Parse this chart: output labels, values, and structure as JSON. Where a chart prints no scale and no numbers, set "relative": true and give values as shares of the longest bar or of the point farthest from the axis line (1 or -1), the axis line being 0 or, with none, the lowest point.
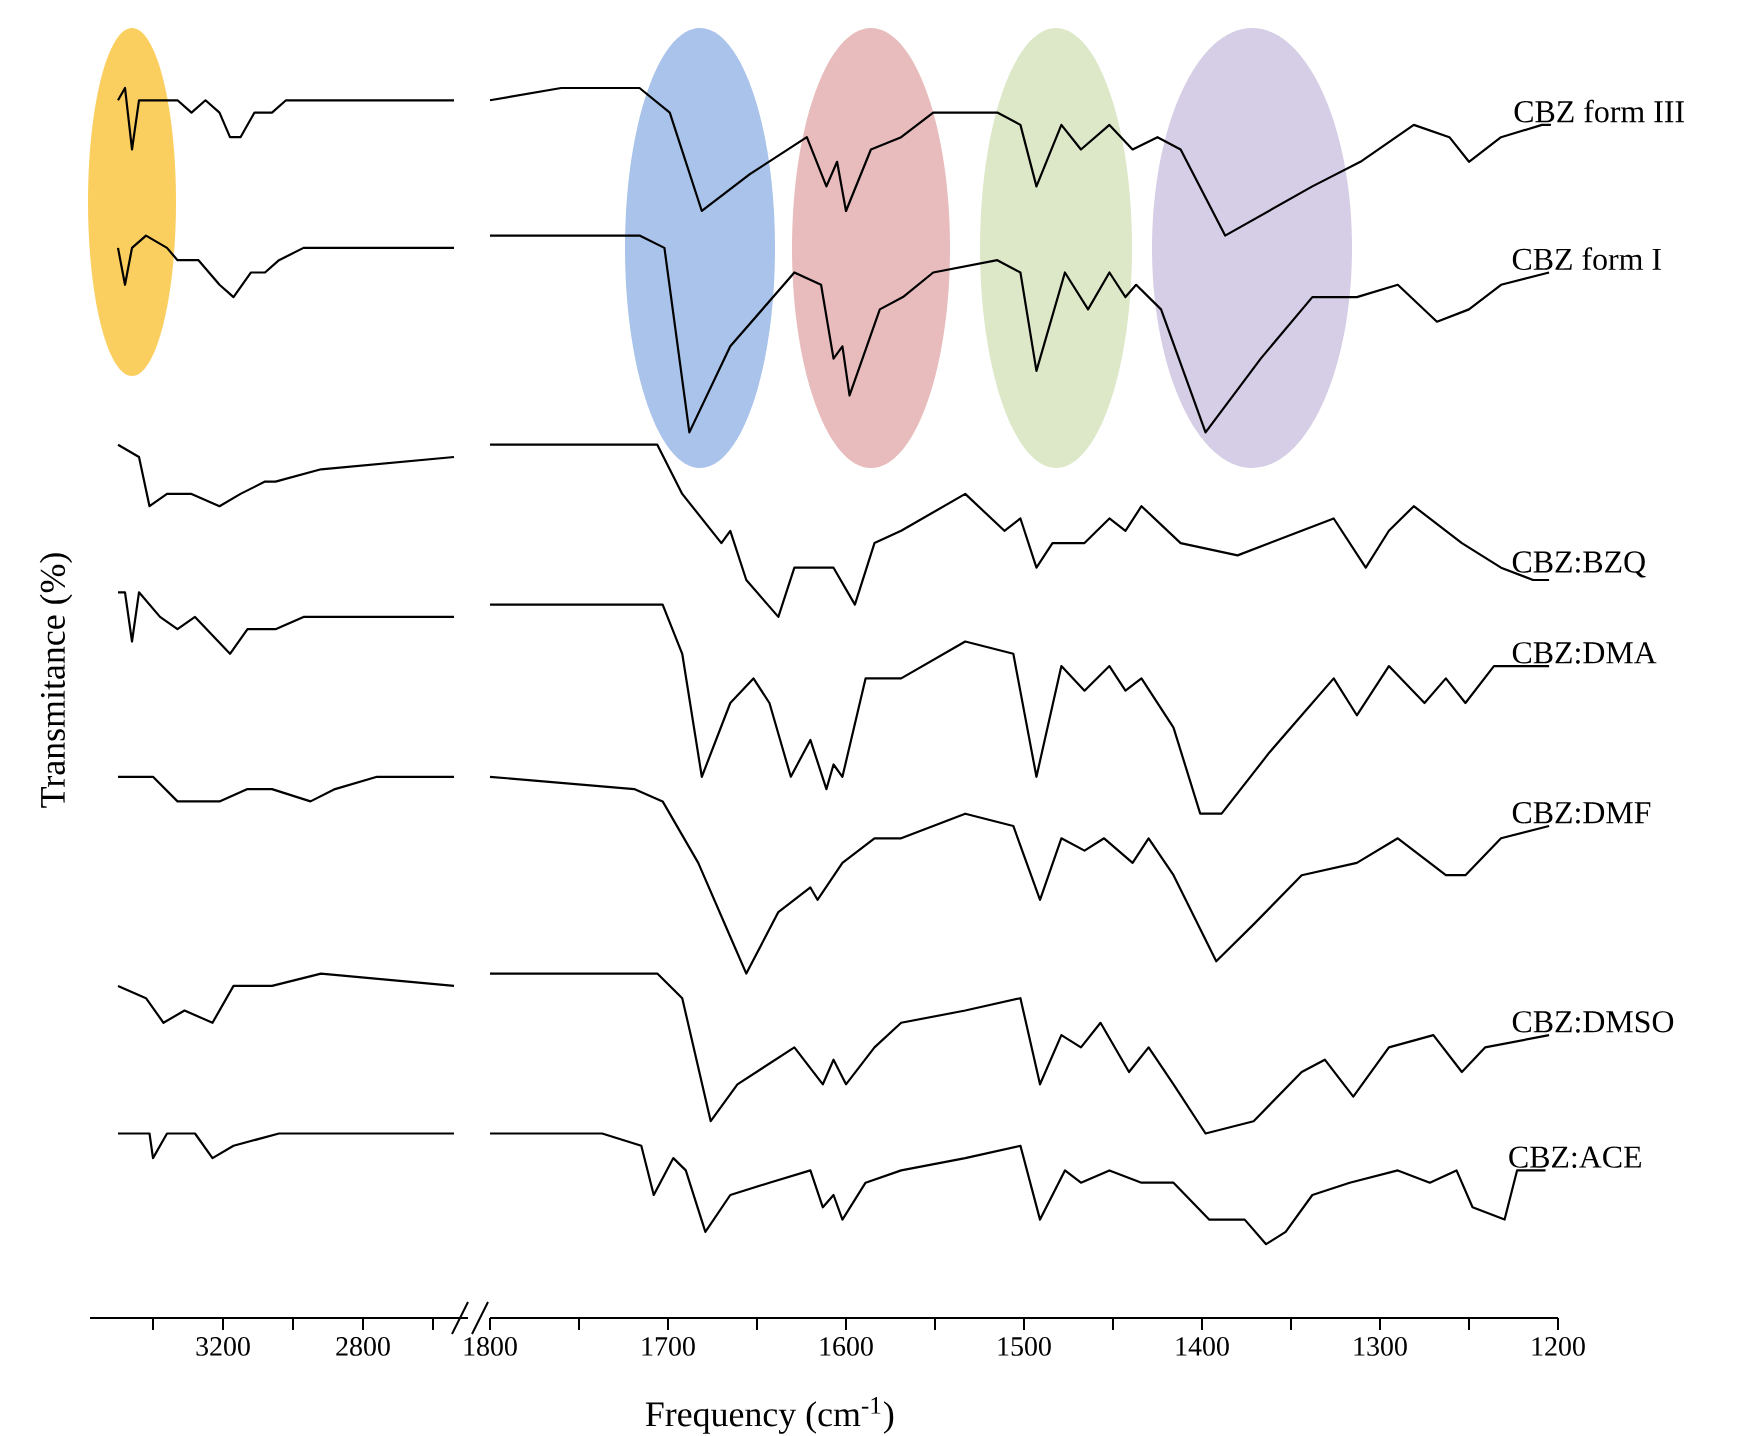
{
  "chart_data": [
    {
      "type": "line",
      "ylabel": "Transmitance (%)",
      "relative": true,
      "tick_labels": "x",
      "xlim": [
        3580,
        2500
      ],
      "xticks": [
        {
          "value": 3400,
          "label": null
        },
        3200,
        {
          "value": 3000,
          "label": null
        },
        2800,
        {
          "value": 2600,
          "label": null
        }
      ],
      "series": [
        {
          "color": "#000000",
          "x": [
            3500,
            3480,
            3460,
            3440,
            3380,
            3330,
            3290,
            3250,
            3210,
            3180,
            3150,
            3110,
            3060,
            3020,
            2880,
            2540
          ],
          "values": [
            0.99,
            1.0,
            0.95,
            0.99,
            0.99,
            0.99,
            0.98,
            0.99,
            0.98,
            0.96,
            0.96,
            0.98,
            0.98,
            0.99,
            0.99,
            0.99
          ]
        },
        {
          "color": "#000000",
          "x": [
            3500,
            3480,
            3460,
            3420,
            3360,
            3330,
            3270,
            3210,
            3170,
            3120,
            3080,
            3040,
            2970,
            2540
          ],
          "values": [
            0.87,
            0.84,
            0.87,
            0.88,
            0.87,
            0.86,
            0.86,
            0.84,
            0.83,
            0.85,
            0.85,
            0.86,
            0.87,
            0.87
          ]
        },
        {
          "color": "#000000",
          "x": [
            3500,
            3440,
            3410,
            3360,
            3290,
            3210,
            3150,
            3080,
            3050,
            2920,
            2540
          ],
          "values": [
            0.71,
            0.7,
            0.66,
            0.67,
            0.67,
            0.66,
            0.67,
            0.68,
            0.68,
            0.69,
            0.7
          ]
        },
        {
          "color": "#000000",
          "x": [
            3500,
            3480,
            3460,
            3440,
            3380,
            3330,
            3280,
            3180,
            3130,
            3050,
            2970,
            2690,
            2540
          ],
          "values": [
            0.59,
            0.59,
            0.55,
            0.59,
            0.57,
            0.56,
            0.57,
            0.54,
            0.56,
            0.56,
            0.57,
            0.57,
            0.57
          ]
        },
        {
          "color": "#000000",
          "x": [
            3500,
            3400,
            3330,
            3210,
            3130,
            3060,
            2950,
            2880,
            2760,
            2540
          ],
          "values": [
            0.44,
            0.44,
            0.42,
            0.42,
            0.43,
            0.43,
            0.42,
            0.43,
            0.44,
            0.44
          ]
        },
        {
          "color": "#000000",
          "x": [
            3500,
            3420,
            3370,
            3310,
            3230,
            3170,
            3060,
            2920,
            2540
          ],
          "values": [
            0.27,
            0.26,
            0.24,
            0.25,
            0.24,
            0.27,
            0.27,
            0.28,
            0.27
          ]
        },
        {
          "color": "#000000",
          "x": [
            3500,
            3410,
            3400,
            3360,
            3280,
            3230,
            3170,
            3040,
            2540
          ],
          "values": [
            0.15,
            0.15,
            0.13,
            0.15,
            0.15,
            0.13,
            0.14,
            0.15,
            0.15
          ]
        }
      ]
    },
    {
      "type": "line",
      "xlabel": "Frequency (cm$^{-1}$)",
      "relative": true,
      "tick_labels": "x",
      "xlim": [
        1800,
        1200
      ],
      "xticks": [
        1800,
        {
          "value": 1750,
          "label": null
        },
        1700,
        {
          "value": 1650,
          "label": null
        },
        1600,
        {
          "value": 1550,
          "label": null
        },
        1500,
        {
          "value": 1450,
          "label": null
        },
        1400,
        {
          "value": 1350,
          "label": null
        },
        1300,
        {
          "value": 1250,
          "label": null
        },
        1200
      ],
      "series": [
        {
          "name": "CBZ form III",
          "color": "#000000",
          "x": [
            1800,
            1760,
            1716,
            1699,
            1681,
            1654,
            1622,
            1611,
            1605,
            1600,
            1586,
            1569,
            1551,
            1515,
            1502,
            1493,
            1479,
            1468,
            1452,
            1439,
            1425,
            1412,
            1387,
            1338,
            1311,
            1281,
            1261,
            1250,
            1232,
            1209,
            1204
          ],
          "values": [
            0.99,
            1.0,
            1.0,
            0.98,
            0.9,
            0.93,
            0.96,
            0.92,
            0.94,
            0.9,
            0.95,
            0.96,
            0.98,
            0.98,
            0.97,
            0.92,
            0.97,
            0.95,
            0.97,
            0.95,
            0.96,
            0.95,
            0.88,
            0.92,
            0.94,
            0.97,
            0.96,
            0.94,
            0.96,
            0.97,
            0.97
          ]
        },
        {
          "name": "CBZ form I",
          "color": "#000000",
          "x": [
            1800,
            1716,
            1702,
            1688,
            1665,
            1629,
            1614,
            1607,
            1602,
            1598,
            1581,
            1568,
            1551,
            1515,
            1502,
            1493,
            1477,
            1464,
            1452,
            1443,
            1437,
            1423,
            1398,
            1367,
            1338,
            1326,
            1313,
            1290,
            1268,
            1250,
            1232,
            1205
          ],
          "values": [
            0.88,
            0.88,
            0.87,
            0.72,
            0.79,
            0.85,
            0.84,
            0.78,
            0.79,
            0.75,
            0.82,
            0.83,
            0.85,
            0.86,
            0.85,
            0.77,
            0.85,
            0.82,
            0.85,
            0.83,
            0.84,
            0.82,
            0.72,
            0.78,
            0.83,
            0.83,
            0.83,
            0.84,
            0.81,
            0.82,
            0.84,
            0.85
          ]
        },
        {
          "name": "CBZ:BZQ",
          "color": "#000000",
          "x": [
            1800,
            1706,
            1692,
            1670,
            1665,
            1656,
            1638,
            1629,
            1607,
            1595,
            1584,
            1569,
            1533,
            1511,
            1502,
            1493,
            1484,
            1466,
            1452,
            1443,
            1434,
            1412,
            1380,
            1344,
            1326,
            1308,
            1295,
            1281,
            1254,
            1232,
            1214,
            1205
          ],
          "values": [
            0.71,
            0.71,
            0.67,
            0.63,
            0.64,
            0.6,
            0.57,
            0.61,
            0.61,
            0.58,
            0.63,
            0.64,
            0.67,
            0.64,
            0.65,
            0.61,
            0.63,
            0.63,
            0.65,
            0.64,
            0.66,
            0.63,
            0.62,
            0.64,
            0.65,
            0.61,
            0.64,
            0.66,
            0.63,
            0.61,
            0.6,
            0.6
          ]
        },
        {
          "name": "CBZ:DMA",
          "color": "#000000",
          "x": [
            1800,
            1703,
            1692,
            1681,
            1665,
            1652,
            1643,
            1631,
            1620,
            1611,
            1607,
            1602,
            1589,
            1569,
            1533,
            1506,
            1493,
            1479,
            1466,
            1452,
            1443,
            1434,
            1416,
            1401,
            1389,
            1362,
            1344,
            1326,
            1313,
            1295,
            1275,
            1263,
            1252,
            1236,
            1205
          ],
          "values": [
            0.58,
            0.58,
            0.54,
            0.44,
            0.5,
            0.52,
            0.5,
            0.44,
            0.47,
            0.43,
            0.45,
            0.44,
            0.52,
            0.52,
            0.55,
            0.54,
            0.44,
            0.53,
            0.51,
            0.53,
            0.51,
            0.52,
            0.48,
            0.41,
            0.41,
            0.46,
            0.49,
            0.52,
            0.49,
            0.53,
            0.5,
            0.52,
            0.5,
            0.53,
            0.53
          ]
        },
        {
          "name": "CBZ:DMF",
          "color": "#000000",
          "x": [
            1800,
            1719,
            1703,
            1683,
            1665,
            1656,
            1638,
            1620,
            1616,
            1602,
            1584,
            1569,
            1533,
            1506,
            1491,
            1479,
            1466,
            1455,
            1439,
            1430,
            1416,
            1392,
            1371,
            1344,
            1313,
            1290,
            1263,
            1252,
            1232,
            1205
          ],
          "values": [
            0.44,
            0.43,
            0.42,
            0.37,
            0.31,
            0.28,
            0.33,
            0.35,
            0.34,
            0.37,
            0.39,
            0.39,
            0.41,
            0.4,
            0.34,
            0.39,
            0.38,
            0.39,
            0.37,
            0.39,
            0.36,
            0.29,
            0.32,
            0.36,
            0.37,
            0.39,
            0.36,
            0.36,
            0.39,
            0.4
          ]
        },
        {
          "name": "CBZ:DMSO",
          "color": "#000000",
          "x": [
            1800,
            1706,
            1692,
            1676,
            1661,
            1629,
            1613,
            1607,
            1600,
            1584,
            1569,
            1533,
            1502,
            1491,
            1479,
            1468,
            1457,
            1441,
            1430,
            1416,
            1398,
            1371,
            1344,
            1331,
            1315,
            1295,
            1270,
            1254,
            1241,
            1205
          ],
          "values": [
            0.28,
            0.28,
            0.26,
            0.16,
            0.19,
            0.22,
            0.19,
            0.21,
            0.19,
            0.22,
            0.24,
            0.25,
            0.26,
            0.19,
            0.23,
            0.22,
            0.24,
            0.2,
            0.22,
            0.19,
            0.15,
            0.16,
            0.2,
            0.21,
            0.18,
            0.22,
            0.23,
            0.2,
            0.22,
            0.23
          ]
        },
        {
          "name": "CBZ:ACE",
          "color": "#000000",
          "x": [
            1800,
            1737,
            1715,
            1708,
            1697,
            1690,
            1679,
            1665,
            1643,
            1620,
            1613,
            1607,
            1602,
            1589,
            1569,
            1533,
            1502,
            1491,
            1477,
            1468,
            1452,
            1434,
            1416,
            1396,
            1376,
            1364,
            1353,
            1338,
            1317,
            1290,
            1272,
            1257,
            1248,
            1230,
            1223,
            1207
          ],
          "values": [
            0.15,
            0.15,
            0.14,
            0.1,
            0.13,
            0.12,
            0.07,
            0.1,
            0.11,
            0.12,
            0.09,
            0.1,
            0.08,
            0.11,
            0.12,
            0.13,
            0.14,
            0.08,
            0.12,
            0.11,
            0.12,
            0.11,
            0.11,
            0.08,
            0.08,
            0.06,
            0.07,
            0.1,
            0.11,
            0.12,
            0.11,
            0.12,
            0.09,
            0.08,
            0.12,
            0.12
          ]
        }
      ]
    }
  ]
}
